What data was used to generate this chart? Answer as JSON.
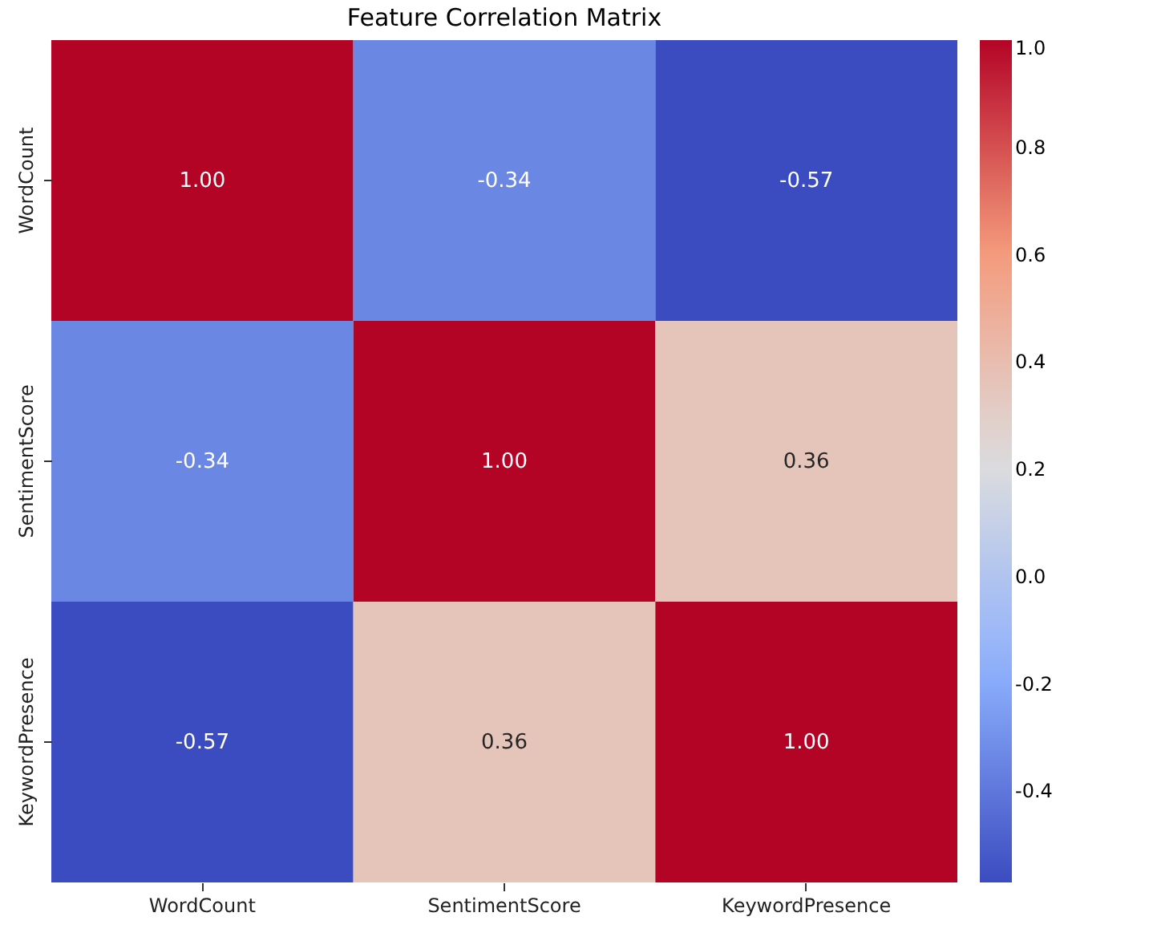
{
  "chart_data": {
    "type": "heatmap",
    "title": "Feature Correlation Matrix",
    "categories": [
      "WordCount",
      "SentimentScore",
      "KeywordPresence"
    ],
    "y_categories": [
      "WordCount",
      "SentimentScore",
      "KeywordPresence"
    ],
    "cells": [
      [
        1,
        -0.34,
        -0.57
      ],
      [
        -0.34,
        1,
        0.36
      ],
      [
        -0.57,
        0.36,
        1
      ]
    ],
    "cell_labels": [
      [
        "1.00",
        "-0.34",
        "-0.57"
      ],
      [
        "-0.34",
        "1.00",
        "0.36"
      ],
      [
        "-0.57",
        "0.36",
        "1.00"
      ]
    ],
    "clim": [
      -0.57,
      1.0
    ],
    "cticks": [
      -0.4,
      -0.2,
      {
        "value": 0,
        "label": "0.0"
      },
      0.2,
      0.4,
      0.6,
      0.8,
      {
        "value": 1,
        "label": "1.0"
      }
    ]
  }
}
